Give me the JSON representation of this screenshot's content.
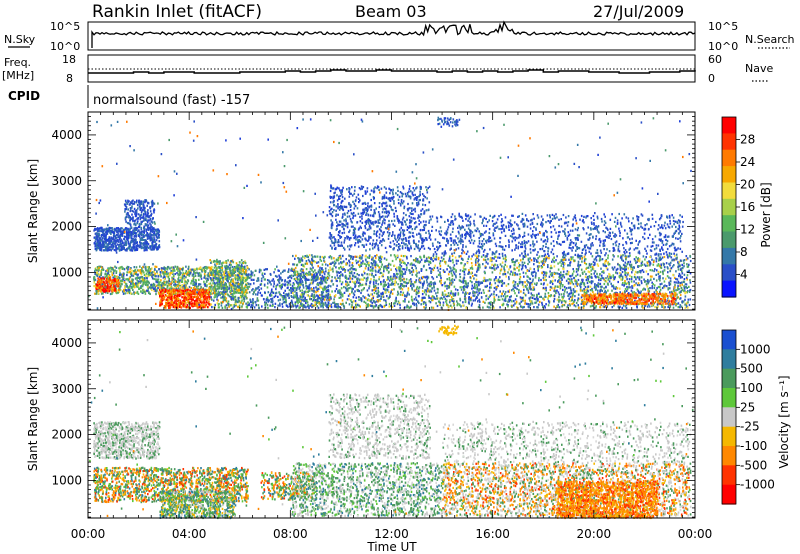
{
  "header": {
    "site": "Rankin Inlet (fitACF)",
    "beam": "Beam 03",
    "date": "27/Jul/2009"
  },
  "left_labels": {
    "nsky": "N.Sky",
    "freq_1": "Freq.",
    "freq_2": "[MHz]",
    "cpid": "CPID"
  },
  "right_labels": {
    "nsearch": "N.Search",
    "nave": "Nave"
  },
  "noise_axis": {
    "left_top": "10^5",
    "left_bottom": "10^0",
    "right_top": "10^5",
    "right_bottom": "10^0"
  },
  "freq_axis": {
    "left_top": "18",
    "left_bottom": "8",
    "right_top": "60",
    "right_bottom": "0"
  },
  "cpid_text": "normalsound (fast) -157",
  "x_axis": {
    "label": "Time UT",
    "ticks": [
      "00:00",
      "04:00",
      "08:00",
      "12:00",
      "16:00",
      "20:00",
      "00:00"
    ]
  },
  "chart_data": [
    {
      "type": "heatmap",
      "ylabel": "Slant Range [km]",
      "xlabel": "Time UT",
      "y_ticks": [
        "1000",
        "2000",
        "3000",
        "4000"
      ],
      "colorbar": {
        "label": "Power [dB]",
        "ticks": [
          "28",
          "24",
          "20",
          "16",
          "12",
          "8",
          "4"
        ],
        "colors": [
          "#ff0000",
          "#ff3300",
          "#ff7a00",
          "#f7a800",
          "#f2dc3c",
          "#a8d04a",
          "#5ab85a",
          "#4b9a6c",
          "#3478a8",
          "#2a4fc8",
          "#0a14ff"
        ]
      }
    },
    {
      "type": "heatmap",
      "ylabel": "Slant Range [km]",
      "xlabel": "Time UT",
      "y_ticks": [
        "1000",
        "2000",
        "3000",
        "4000"
      ],
      "colorbar": {
        "label": "Velocity [m s⁻¹]",
        "ticks": [
          "1000",
          "500",
          "100",
          "25",
          "-25",
          "-100",
          "-500",
          "-1000"
        ],
        "colors": [
          "#1a4fd0",
          "#2f7d9e",
          "#4a9a5c",
          "#5ec83a",
          "#c8c8c8",
          "#f5b800",
          "#ff8800",
          "#ff3300",
          "#ff0000"
        ]
      }
    }
  ]
}
